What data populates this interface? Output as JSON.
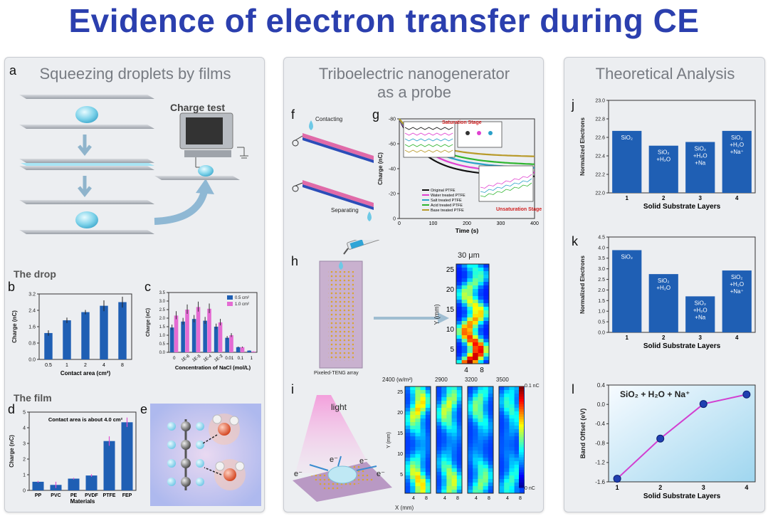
{
  "title": "Evidence of electron transfer during CE",
  "left": {
    "subtitle": "Squeezing droplets by films",
    "label_a": "a",
    "charge_test": "Charge test",
    "drop_heading": "The drop",
    "label_b": "b",
    "label_c": "c",
    "film_heading": "The film",
    "label_d": "d",
    "label_e": "e"
  },
  "middle": {
    "subtitle_line1": "Triboelectric nanogenerator",
    "subtitle_line2": "as a probe",
    "label_f": "f",
    "contacting": "Contacting",
    "separating": "Separating",
    "label_g": "g",
    "saturation_stage": "Saturation Stage",
    "unsaturation_stage": "Unsaturation Stage",
    "label_h": "h",
    "pixeled_teng": "Pixeled-TENG array",
    "map_h_title": "30 μm",
    "map_h_ylabel": "Y (mm)",
    "map_h_xticks": [
      "4",
      "8"
    ],
    "label_i": "i",
    "light": "light",
    "electron": "e⁻",
    "map_i_titles": [
      "2400 (w/m²)",
      "2900",
      "3200",
      "3500"
    ],
    "map_i_ylabel": "Y (mm)",
    "map_i_xlabel": "X (mm)",
    "colorbar_top": "0.1 nC",
    "colorbar_bottom": "0 nC"
  },
  "right": {
    "subtitle": "Theoretical Analysis",
    "label_j": "j",
    "label_k": "k",
    "label_l": "l",
    "l_annotation": "SiO₂ + H₂O + Na⁺"
  },
  "chart_data": [
    {
      "id": "b",
      "type": "bar",
      "categories": [
        "0.5",
        "1",
        "2",
        "4",
        "8"
      ],
      "values": [
        1.45,
        2.15,
        2.6,
        2.95,
        3.15
      ],
      "errors": [
        0.15,
        0.15,
        0.12,
        0.3,
        0.3
      ],
      "xlabel": "Contact area (cm²)",
      "ylabel": "Charge (nC)",
      "ylim": [
        0,
        3.6
      ],
      "yticks": [
        "0.0",
        "0.8",
        "1.6",
        "2.4",
        "3.2"
      ],
      "color": "#1f5fb4"
    },
    {
      "id": "c",
      "type": "bar",
      "categories": [
        "0",
        "1E-6",
        "1E-5",
        "1E-4",
        "1E-3",
        "0.01",
        "0.1",
        "1"
      ],
      "series": [
        {
          "name": "0.5 cm²",
          "values": [
            1.45,
            1.8,
            1.95,
            1.85,
            1.5,
            0.85,
            0.3,
            0.1
          ],
          "color": "#1f5fb4"
        },
        {
          "name": "1.0 cm²",
          "values": [
            2.15,
            2.5,
            2.65,
            2.55,
            1.75,
            1.0,
            0.3,
            0.05
          ],
          "color": "#e46bd3"
        }
      ],
      "xlabel": "Concentration of NaCl (mol/L)",
      "ylabel": "Charge (nC)",
      "ylim": [
        0,
        3.5
      ],
      "yticks": [
        "0.0",
        "0.5",
        "1.0",
        "1.5",
        "2.0",
        "2.5",
        "3.0",
        "3.5"
      ]
    },
    {
      "id": "d",
      "type": "bar",
      "categories": [
        "PP",
        "PVC",
        "PE",
        "PVDF",
        "PTFE",
        "FEP"
      ],
      "values": [
        0.55,
        0.35,
        0.75,
        0.95,
        3.15,
        4.35
      ],
      "errors": [
        0.05,
        0.2,
        0.05,
        0.08,
        0.3,
        0.3
      ],
      "xlabel": "Materials",
      "ylabel": "Charge (nC)",
      "annotation": "Contact area is about 4.0 cm²",
      "ylim": [
        0,
        5
      ],
      "yticks": [
        "0",
        "1",
        "2",
        "3",
        "4",
        "5"
      ],
      "color": "#1f5fb4"
    },
    {
      "id": "g",
      "type": "line",
      "xlabel": "Time (s)",
      "ylabel": "Charge (nC)",
      "xlim": [
        0,
        400
      ],
      "ylim": [
        -80,
        0
      ],
      "xticks": [
        "0",
        "100",
        "200",
        "300",
        "400"
      ],
      "yticks": [
        "0",
        "-20",
        "-40",
        "-60",
        "-80"
      ],
      "series": [
        {
          "name": "Original PTFE",
          "color": "#111111",
          "final": -49,
          "rate": 70
        },
        {
          "name": "Water treated PTFE",
          "color": "#e040d0",
          "final": -46,
          "rate": 80
        },
        {
          "name": "Salt treated PTFE",
          "color": "#2aa0c8",
          "final": -42,
          "rate": 85
        },
        {
          "name": "Acid treated PTFE",
          "color": "#2fb52f",
          "final": -39,
          "rate": 90
        },
        {
          "name": "Base treated PTFE",
          "color": "#b89a2a",
          "final": -32,
          "rate": 75
        }
      ]
    },
    {
      "id": "j",
      "type": "bar",
      "categories": [
        "1",
        "2",
        "3",
        "4"
      ],
      "labels": [
        "SiO₂",
        "SiO₂ +H₂O",
        "SiO₂ +H₂O +Na",
        "SiO₂ +H₂O +Na⁺"
      ],
      "values": [
        22.67,
        22.51,
        22.55,
        22.67
      ],
      "xlabel": "Solid Substrate Layers",
      "ylabel": "Normalized Electrons",
      "ylim": [
        22.0,
        23.0
      ],
      "yticks": [
        "22.0",
        "22.2",
        "22.4",
        "22.6",
        "22.8",
        "23.0"
      ],
      "color": "#1f5fb4"
    },
    {
      "id": "k",
      "type": "bar",
      "categories": [
        "1",
        "2",
        "3",
        "4"
      ],
      "labels": [
        "SiO₂",
        "SiO₂ +H₂O",
        "SiO₂ +H₂O +Na",
        "SiO₂ +H₂O +Na⁺"
      ],
      "values": [
        3.88,
        2.75,
        1.7,
        2.92
      ],
      "xlabel": "Solid Substrate Layers",
      "ylabel": "Normalized Electrons",
      "ylim": [
        0,
        4.5
      ],
      "yticks": [
        "0.0",
        "0.5",
        "1.0",
        "1.5",
        "2.0",
        "2.5",
        "3.0",
        "3.5",
        "4.0",
        "4.5"
      ],
      "color": "#1f5fb4"
    },
    {
      "id": "l",
      "type": "line",
      "x": [
        1,
        2,
        3,
        4
      ],
      "values": [
        -1.68,
        -0.79,
        -0.02,
        0.19
      ],
      "xlabel": "Solid Substrate Layers",
      "ylabel": "Band Offset (eV)",
      "xlim": [
        0.8,
        4.2
      ],
      "ylim": [
        -1.75,
        0.4
      ],
      "yticks": [
        "0.4",
        "0.0",
        "-0.4",
        "-0.8",
        "-1.2",
        "-1.6"
      ],
      "xticks": [
        "1",
        "2",
        "3",
        "4"
      ],
      "color": "#d23fd0"
    }
  ]
}
